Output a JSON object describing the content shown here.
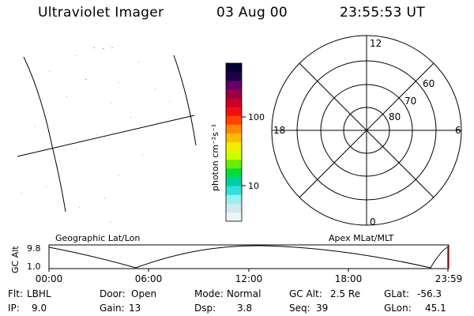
{
  "header": {
    "title": "Ultraviolet Imager",
    "date": "03 Aug 00",
    "time": "23:55:53 UT"
  },
  "colorbar": {
    "unit_label": "photon cm⁻²s⁻¹",
    "ticks": [
      "100",
      "10"
    ],
    "colors": [
      "#000033",
      "#220044",
      "#660066",
      "#990044",
      "#cc0022",
      "#ee1111",
      "#ff4400",
      "#ff8800",
      "#ffbb00",
      "#eeee00",
      "#ccff00",
      "#66ee00",
      "#00dd44",
      "#00ccaa",
      "#33dddd",
      "#99eeee",
      "#d0e8f0",
      "#eef4f8"
    ]
  },
  "polar": {
    "mlt_labels": {
      "top": "12",
      "right": "6",
      "bottom": "0",
      "left": "18"
    },
    "lat_labels": [
      "80",
      "70",
      "60"
    ]
  },
  "timeline": {
    "ylabel": "GC Alt",
    "ytick_top": "9.8",
    "ytick_bottom": "1.0",
    "left_caption": "Geographic Lat/Lon",
    "right_caption": "Apex MLat/MLT",
    "xticks": [
      "00:00",
      "06:00",
      "12:00",
      "18:00",
      "23:59"
    ]
  },
  "info": {
    "row1": [
      {
        "label": "Flt:",
        "value": "LBHL"
      },
      {
        "label": "Door:",
        "value": "Open"
      },
      {
        "label": "Mode:",
        "value": "Normal"
      },
      {
        "label": "GC Alt:",
        "value": "2.5 Re"
      },
      {
        "label": "GLat:",
        "value": "-56.3"
      }
    ],
    "row2": [
      {
        "label": "IP:",
        "value": "9.0"
      },
      {
        "label": "Gain:",
        "value": "13"
      },
      {
        "label": "Dsp:",
        "value": "3.8"
      },
      {
        "label": "Seq:",
        "value": "39"
      },
      {
        "label": "GLon:",
        "value": "45.1"
      }
    ]
  }
}
